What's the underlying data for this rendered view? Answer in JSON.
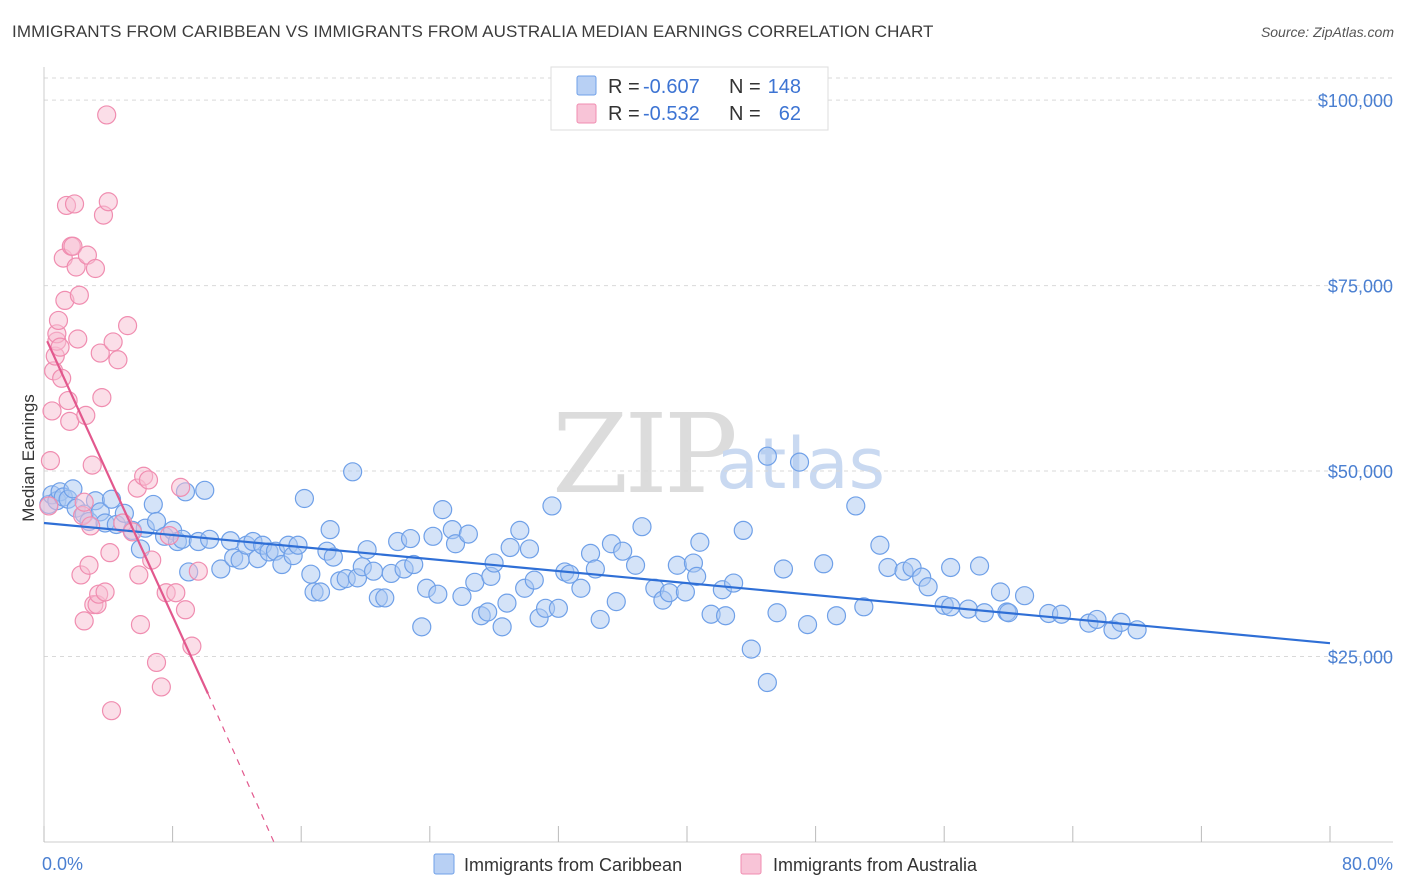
{
  "title": "IMMIGRANTS FROM CARIBBEAN VS IMMIGRANTS FROM AUSTRALIA MEDIAN EARNINGS CORRELATION CHART",
  "source": "Source: ZipAtlas.com",
  "watermark": {
    "zip": "ZIP",
    "atlas": "atlas"
  },
  "legend_top": {
    "rows": [
      {
        "r_label": "R =",
        "r_value": "-0.607",
        "n_label": "N =",
        "n_value": "148",
        "color": "#6fa0e8"
      },
      {
        "r_label": "R =",
        "r_value": "-0.532",
        "n_label": "N =",
        "n_value": "62",
        "color": "#f08db0"
      }
    ]
  },
  "chart_data": {
    "type": "scatter",
    "xlabel": "",
    "ylabel": "Median Earnings",
    "xlim": [
      0,
      80
    ],
    "ylim": [
      0,
      105000
    ],
    "x_tick_labels": {
      "min": "0.0%",
      "max": "80.0%"
    },
    "y_ticks": [
      {
        "value": 25000,
        "label": "$25,000"
      },
      {
        "value": 50000,
        "label": "$50,000"
      },
      {
        "value": 75000,
        "label": "$75,000"
      },
      {
        "value": 100000,
        "label": "$100,000"
      }
    ],
    "grid": "horizontal dashed",
    "series": [
      {
        "name": "Immigrants from Caribbean",
        "color": "#6fa0e8",
        "fill": "#a9c7f2",
        "trend": {
          "x": [
            0,
            80
          ],
          "y": [
            43000,
            26800
          ],
          "style": "solid"
        },
        "points": [
          [
            0.3,
            45500
          ],
          [
            0.5,
            46800
          ],
          [
            0.8,
            46000
          ],
          [
            1.0,
            47200
          ],
          [
            1.2,
            46500
          ],
          [
            1.5,
            46200
          ],
          [
            1.8,
            47600
          ],
          [
            2.0,
            45000
          ],
          [
            2.5,
            44200
          ],
          [
            2.8,
            43200
          ],
          [
            3.2,
            46000
          ],
          [
            3.5,
            44500
          ],
          [
            3.8,
            43000
          ],
          [
            4.2,
            46200
          ],
          [
            4.5,
            42800
          ],
          [
            5.0,
            44300
          ],
          [
            5.5,
            42000
          ],
          [
            6.0,
            39500
          ],
          [
            6.3,
            42300
          ],
          [
            6.8,
            45500
          ],
          [
            7.0,
            43200
          ],
          [
            7.5,
            41200
          ],
          [
            8.0,
            42000
          ],
          [
            8.3,
            40500
          ],
          [
            8.6,
            40800
          ],
          [
            8.8,
            47200
          ],
          [
            9.0,
            36400
          ],
          [
            9.6,
            40500
          ],
          [
            10.0,
            47400
          ],
          [
            10.3,
            40800
          ],
          [
            11.0,
            36800
          ],
          [
            11.6,
            40600
          ],
          [
            11.8,
            38300
          ],
          [
            12.2,
            38000
          ],
          [
            12.6,
            40000
          ],
          [
            13.0,
            40500
          ],
          [
            13.3,
            38200
          ],
          [
            13.6,
            40000
          ],
          [
            14.0,
            39100
          ],
          [
            14.4,
            39200
          ],
          [
            14.8,
            37400
          ],
          [
            15.2,
            40000
          ],
          [
            15.5,
            38600
          ],
          [
            15.8,
            40000
          ],
          [
            16.2,
            46300
          ],
          [
            16.6,
            36100
          ],
          [
            16.8,
            33700
          ],
          [
            17.2,
            33700
          ],
          [
            17.6,
            39200
          ],
          [
            17.8,
            42100
          ],
          [
            18.0,
            38400
          ],
          [
            18.4,
            35200
          ],
          [
            18.8,
            35500
          ],
          [
            19.2,
            49900
          ],
          [
            19.5,
            35600
          ],
          [
            19.8,
            37100
          ],
          [
            20.1,
            39400
          ],
          [
            20.5,
            36500
          ],
          [
            20.8,
            32900
          ],
          [
            21.2,
            32900
          ],
          [
            21.6,
            36200
          ],
          [
            22.0,
            40500
          ],
          [
            22.4,
            36800
          ],
          [
            22.8,
            40900
          ],
          [
            23.0,
            37400
          ],
          [
            23.5,
            29000
          ],
          [
            23.8,
            34200
          ],
          [
            24.2,
            41200
          ],
          [
            24.5,
            33400
          ],
          [
            24.8,
            44800
          ],
          [
            25.4,
            42100
          ],
          [
            25.6,
            40200
          ],
          [
            26.0,
            33100
          ],
          [
            26.4,
            41500
          ],
          [
            26.8,
            35000
          ],
          [
            27.2,
            30500
          ],
          [
            27.6,
            31000
          ],
          [
            27.8,
            35800
          ],
          [
            28.0,
            37600
          ],
          [
            28.5,
            29000
          ],
          [
            28.8,
            32200
          ],
          [
            29.0,
            39700
          ],
          [
            29.6,
            42000
          ],
          [
            29.9,
            34200
          ],
          [
            30.2,
            39500
          ],
          [
            30.5,
            35300
          ],
          [
            30.8,
            30200
          ],
          [
            31.2,
            31500
          ],
          [
            31.6,
            45300
          ],
          [
            32.0,
            31500
          ],
          [
            32.4,
            36400
          ],
          [
            32.7,
            36100
          ],
          [
            33.4,
            34200
          ],
          [
            34.0,
            38900
          ],
          [
            34.3,
            36800
          ],
          [
            34.6,
            30000
          ],
          [
            35.3,
            40200
          ],
          [
            35.6,
            32400
          ],
          [
            36.0,
            39200
          ],
          [
            36.8,
            37300
          ],
          [
            37.2,
            42500
          ],
          [
            38.0,
            34200
          ],
          [
            38.5,
            32600
          ],
          [
            38.9,
            33600
          ],
          [
            39.4,
            37300
          ],
          [
            39.9,
            33700
          ],
          [
            40.4,
            37600
          ],
          [
            40.8,
            40400
          ],
          [
            40.6,
            35800
          ],
          [
            41.5,
            30700
          ],
          [
            42.2,
            34000
          ],
          [
            42.4,
            30500
          ],
          [
            42.9,
            34900
          ],
          [
            43.5,
            42000
          ],
          [
            44.0,
            26000
          ],
          [
            45.0,
            52000
          ],
          [
            45.6,
            30900
          ],
          [
            46.0,
            36800
          ],
          [
            47.0,
            51200
          ],
          [
            47.5,
            29300
          ],
          [
            48.5,
            37500
          ],
          [
            49.3,
            30500
          ],
          [
            50.5,
            45300
          ],
          [
            51.0,
            31700
          ],
          [
            52.0,
            40000
          ],
          [
            52.5,
            37000
          ],
          [
            53.5,
            36500
          ],
          [
            54.0,
            37000
          ],
          [
            54.6,
            35700
          ],
          [
            55.0,
            34400
          ],
          [
            56.4,
            37000
          ],
          [
            56.0,
            31900
          ],
          [
            56.4,
            31700
          ],
          [
            57.5,
            31400
          ],
          [
            58.2,
            37200
          ],
          [
            58.5,
            30900
          ],
          [
            59.5,
            33700
          ],
          [
            59.9,
            31000
          ],
          [
            60.0,
            30900
          ],
          [
            61.0,
            33200
          ],
          [
            62.5,
            30800
          ],
          [
            63.3,
            30700
          ],
          [
            65.0,
            29500
          ],
          [
            65.5,
            30000
          ],
          [
            66.5,
            28600
          ],
          [
            67.0,
            29600
          ],
          [
            68.0,
            28600
          ],
          [
            45.0,
            21500
          ]
        ]
      },
      {
        "name": "Immigrants from Australia",
        "color": "#f08db0",
        "fill": "#f7bdd2",
        "trend": {
          "x": [
            0.2,
            10.2
          ],
          "y": [
            67500,
            20000
          ],
          "style": "solid",
          "dash_to": [
            14.3,
            0
          ]
        },
        "points": [
          [
            0.3,
            45300
          ],
          [
            0.4,
            51400
          ],
          [
            0.5,
            58100
          ],
          [
            0.6,
            63500
          ],
          [
            0.7,
            65500
          ],
          [
            0.8,
            67500
          ],
          [
            0.8,
            68500
          ],
          [
            0.9,
            70300
          ],
          [
            1.0,
            66700
          ],
          [
            1.1,
            62500
          ],
          [
            1.2,
            78700
          ],
          [
            1.3,
            73000
          ],
          [
            1.4,
            85800
          ],
          [
            1.5,
            59500
          ],
          [
            1.6,
            56700
          ],
          [
            1.7,
            80300
          ],
          [
            1.8,
            80300
          ],
          [
            1.9,
            86000
          ],
          [
            2.0,
            77500
          ],
          [
            2.1,
            67800
          ],
          [
            2.2,
            73700
          ],
          [
            2.3,
            36000
          ],
          [
            2.4,
            44000
          ],
          [
            2.5,
            45800
          ],
          [
            2.6,
            57500
          ],
          [
            2.7,
            79100
          ],
          [
            2.8,
            37300
          ],
          [
            2.9,
            42600
          ],
          [
            3.0,
            50800
          ],
          [
            3.1,
            32000
          ],
          [
            3.2,
            77300
          ],
          [
            3.3,
            32000
          ],
          [
            3.4,
            33400
          ],
          [
            3.5,
            65900
          ],
          [
            3.6,
            59900
          ],
          [
            3.7,
            84500
          ],
          [
            3.8,
            33700
          ],
          [
            3.9,
            98000
          ],
          [
            4.0,
            86300
          ],
          [
            4.1,
            39000
          ],
          [
            4.2,
            17700
          ],
          [
            4.3,
            67400
          ],
          [
            4.6,
            65000
          ],
          [
            4.9,
            43000
          ],
          [
            5.2,
            69600
          ],
          [
            5.5,
            41800
          ],
          [
            5.8,
            47700
          ],
          [
            5.9,
            36000
          ],
          [
            6.0,
            29300
          ],
          [
            6.2,
            49300
          ],
          [
            6.5,
            48800
          ],
          [
            6.7,
            38000
          ],
          [
            7.0,
            24200
          ],
          [
            7.3,
            20900
          ],
          [
            7.6,
            33600
          ],
          [
            7.8,
            41300
          ],
          [
            8.2,
            33600
          ],
          [
            8.5,
            47800
          ],
          [
            8.8,
            31300
          ],
          [
            9.2,
            26400
          ],
          [
            9.6,
            36500
          ],
          [
            2.5,
            29800
          ]
        ]
      }
    ]
  },
  "legend_bottom": {
    "items": [
      {
        "label": "Immigrants from Caribbean",
        "color": "#6fa0e8"
      },
      {
        "label": "Immigrants from Australia",
        "color": "#f08db0"
      }
    ]
  }
}
